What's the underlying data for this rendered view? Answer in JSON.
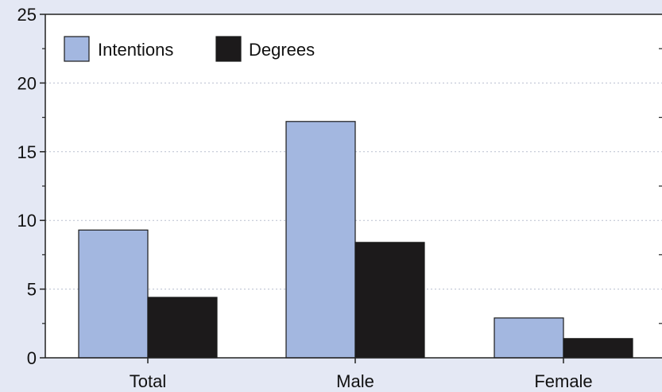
{
  "chart_data": {
    "type": "bar",
    "title": "",
    "xlabel": "",
    "ylabel": "",
    "categories": [
      "Total",
      "Male",
      "Female"
    ],
    "series": [
      {
        "name": "Intentions",
        "color": "#a3b7e0",
        "values": [
          9.3,
          17.2,
          2.9
        ]
      },
      {
        "name": "Degrees",
        "color": "#1c1a1b",
        "values": [
          4.4,
          8.4,
          1.4
        ]
      }
    ],
    "ylim": [
      0,
      25
    ],
    "yticks": [
      0,
      5,
      10,
      15,
      20,
      25
    ],
    "y_minor_step": 2.5,
    "grid": true,
    "legend_position": "top-left"
  }
}
